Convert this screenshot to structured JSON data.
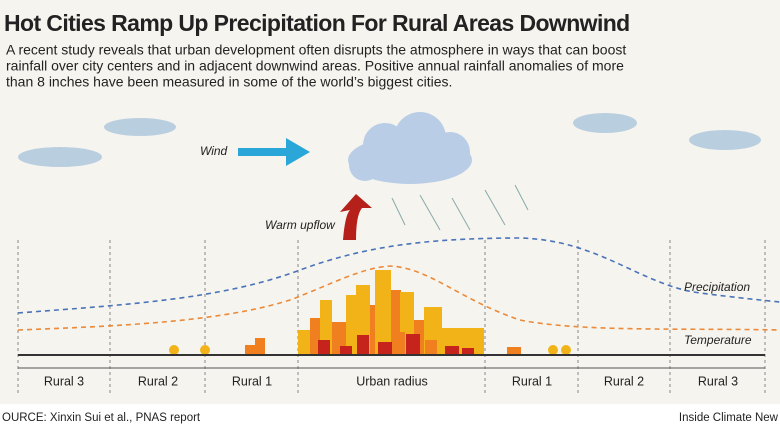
{
  "header": {
    "title": "Hot Cities Ramp Up Precipitation For Rural Areas Downwind",
    "description": [
      "A recent study reveals that urban development often disrupts the atmosphere in ways that can boost",
      "rainfall over city centers and in adjacent downwind areas. Positive annual rainfall anomalies of more",
      "than 8 inches have been measured in some of the world’s biggest cities."
    ]
  },
  "labels": {
    "wind": "Wind",
    "upflow": "Warm upflow",
    "precipitation": "Precipitation",
    "temperature": "Temperature"
  },
  "zones": [
    "Rural 3",
    "Rural 2",
    "Rural 1",
    "Urban radius",
    "Rural 1",
    "Rural 2",
    "Rural 3"
  ],
  "footer": {
    "source": "OURCE: Xinxin Sui et al., PNAS report",
    "credit": "Inside Climate New"
  }
}
